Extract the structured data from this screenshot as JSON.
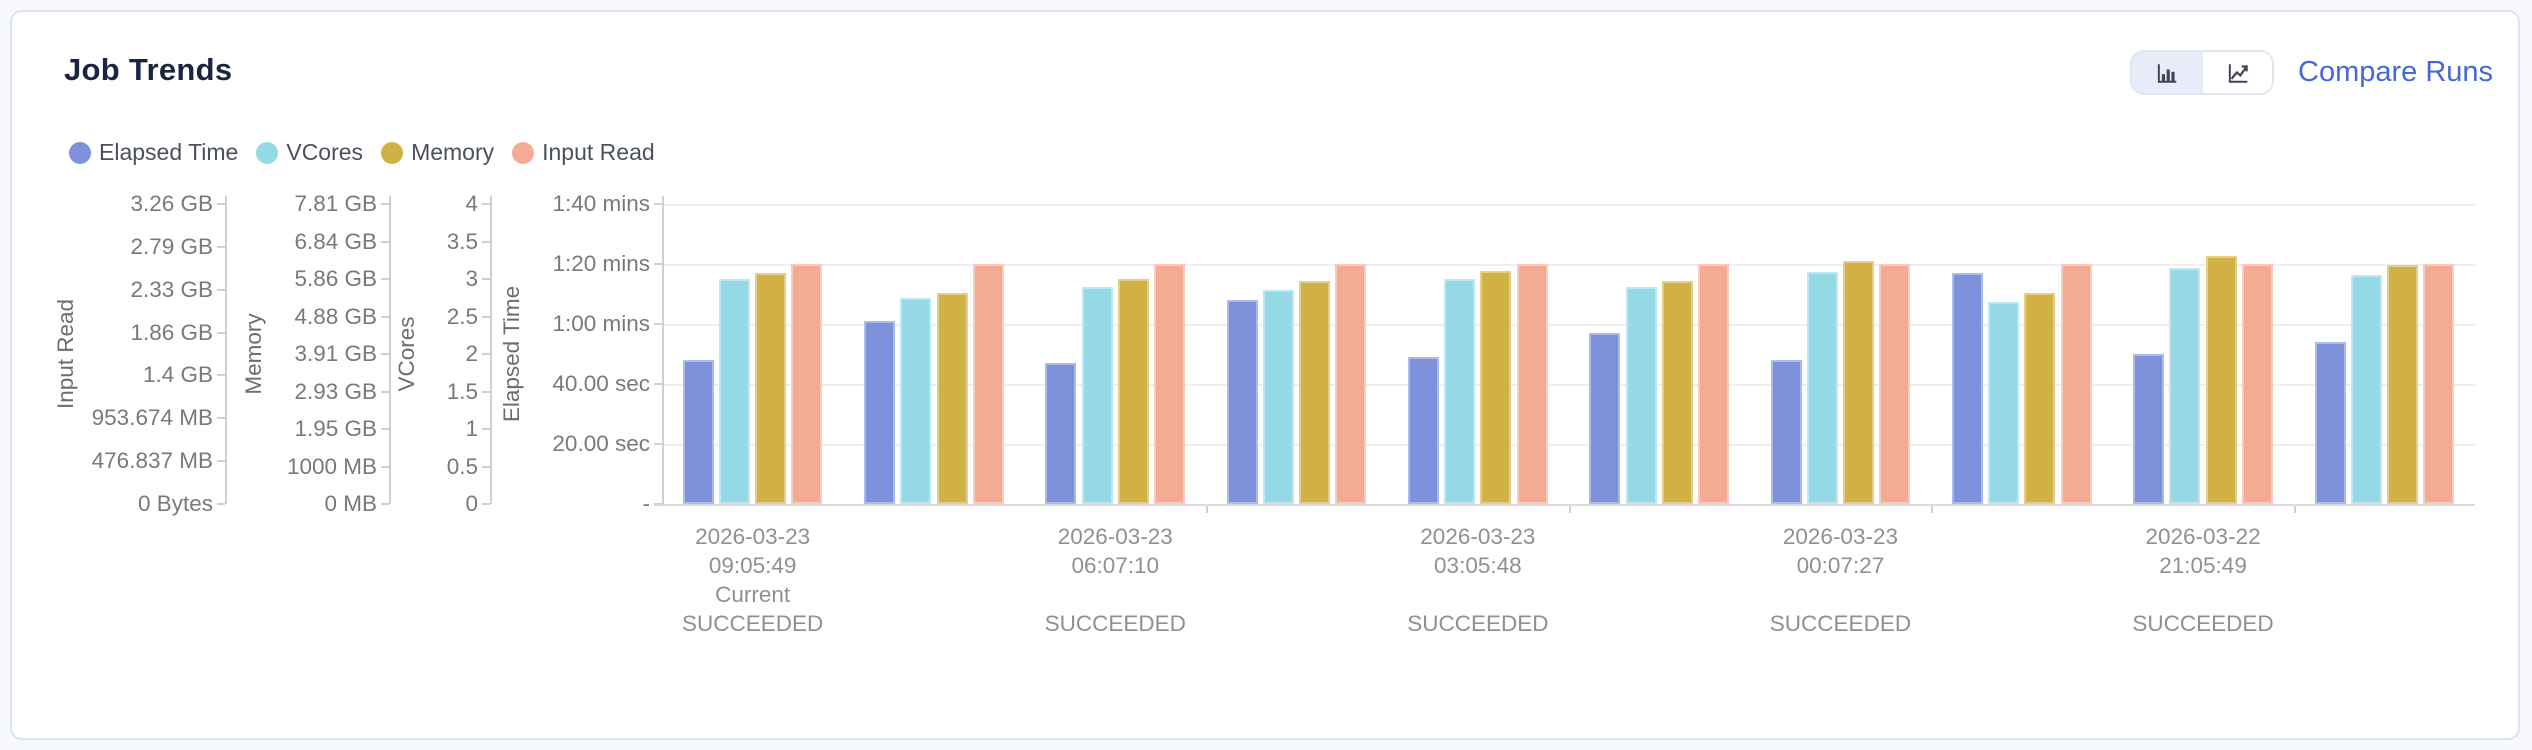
{
  "header": {
    "title": "Job Trends",
    "compare_runs_label": "Compare Runs"
  },
  "toolbar": {
    "chart_type_options": [
      "bar",
      "line"
    ],
    "selected_chart_type": "bar"
  },
  "colors": {
    "elapsed_time": "#7d92da",
    "vcores": "#96d9e6",
    "memory": "#d2b144",
    "input_read": "#f4ab93",
    "link_blue": "#4468d9",
    "title_navy": "#1b2540"
  },
  "legend": [
    {
      "label": "Elapsed Time",
      "color": "#7d92da"
    },
    {
      "label": "VCores",
      "color": "#96d9e6"
    },
    {
      "label": "Memory",
      "color": "#d2b144"
    },
    {
      "label": "Input Read",
      "color": "#f4ab93"
    }
  ],
  "chart_data": {
    "type": "bar",
    "grouping": "10 runs, 4 bars per run; only every 2nd run is labeled on the x-axis",
    "axes": [
      {
        "name": "Input Read",
        "ticks": [
          "3.26 GB",
          "2.79 GB",
          "2.33 GB",
          "1.86 GB",
          "1.4 GB",
          "953.674 MB",
          "476.837 MB",
          "0 Bytes"
        ],
        "max": 3.26,
        "unit": "GB"
      },
      {
        "name": "Memory",
        "ticks": [
          "7.81 GB",
          "6.84 GB",
          "5.86 GB",
          "4.88 GB",
          "3.91 GB",
          "2.93 GB",
          "1.95 GB",
          "1000 MB",
          "0 MB"
        ],
        "max": 8000,
        "unit": "MB"
      },
      {
        "name": "VCores",
        "ticks": [
          "4",
          "3.5",
          "3",
          "2.5",
          "2",
          "1.5",
          "1",
          "0.5",
          "0"
        ],
        "max": 4,
        "unit": "vcores"
      },
      {
        "name": "Elapsed Time",
        "ticks": [
          "1:40 mins",
          "1:20 mins",
          "1:00 mins",
          "40.00 sec",
          "20.00 sec",
          "-"
        ],
        "max": 100,
        "unit": "sec"
      }
    ],
    "series": [
      {
        "name": "Elapsed Time",
        "key": "elapsed_sec",
        "color": "#7d92da",
        "axis_max": 100
      },
      {
        "name": "VCores",
        "key": "vcores",
        "color": "#96d9e6",
        "axis_max": 4
      },
      {
        "name": "Memory",
        "key": "memory_mb",
        "color": "#d2b144",
        "axis_max": 8000
      },
      {
        "name": "Input Read",
        "key": "input_read_gb",
        "color": "#f4ab93",
        "axis_max": 3.26
      }
    ],
    "runs": [
      {
        "date": "2026-03-23",
        "time": "09:05:49",
        "tag": "Current",
        "status": "SUCCEEDED",
        "elapsed_sec": 48,
        "vcores": 3.0,
        "memory_mb": 6160,
        "input_read_gb": 2.61
      },
      {
        "elapsed_sec": 61,
        "vcores": 2.75,
        "memory_mb": 5630,
        "input_read_gb": 2.61
      },
      {
        "date": "2026-03-23",
        "time": "06:07:10",
        "status": "SUCCEEDED",
        "elapsed_sec": 47,
        "vcores": 2.9,
        "memory_mb": 5990,
        "input_read_gb": 2.61
      },
      {
        "elapsed_sec": 68,
        "vcores": 2.85,
        "memory_mb": 5950,
        "input_read_gb": 2.61
      },
      {
        "date": "2026-03-23",
        "time": "03:05:48",
        "status": "SUCCEEDED",
        "elapsed_sec": 49,
        "vcores": 3.0,
        "memory_mb": 6220,
        "input_read_gb": 2.61
      },
      {
        "elapsed_sec": 57,
        "vcores": 2.9,
        "memory_mb": 5955,
        "input_read_gb": 2.61
      },
      {
        "date": "2026-03-23",
        "time": "00:07:27",
        "status": "SUCCEEDED",
        "elapsed_sec": 48,
        "vcores": 3.1,
        "memory_mb": 6470,
        "input_read_gb": 2.61
      },
      {
        "elapsed_sec": 77,
        "vcores": 2.7,
        "memory_mb": 5620,
        "input_read_gb": 2.61
      },
      {
        "date": "2026-03-22",
        "time": "21:05:49",
        "status": "SUCCEEDED",
        "elapsed_sec": 50,
        "vcores": 3.15,
        "memory_mb": 6610,
        "input_read_gb": 2.61
      },
      {
        "elapsed_sec": 54,
        "vcores": 3.05,
        "memory_mb": 6365,
        "input_read_gb": 2.61
      }
    ]
  }
}
